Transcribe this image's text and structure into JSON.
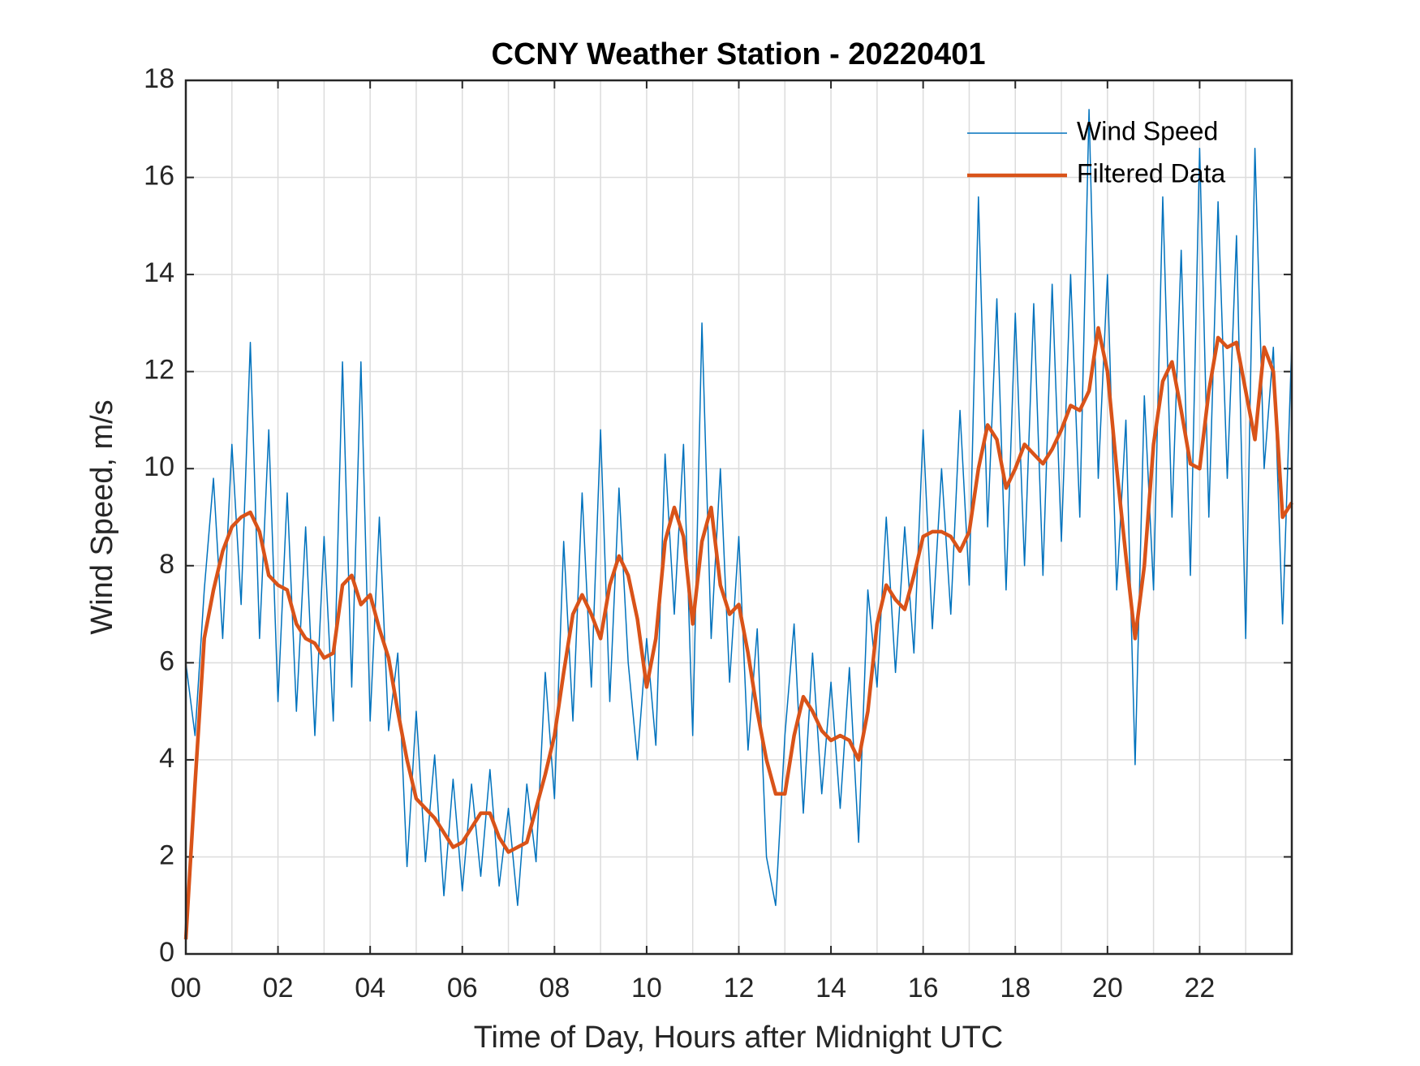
{
  "chart_data": {
    "type": "line",
    "title": "CCNY Weather Station - 20220401",
    "xlabel": "Time of Day, Hours after Midnight UTC",
    "ylabel": "Wind Speed, m/s",
    "x": [
      0,
      0.2,
      0.4,
      0.6,
      0.8,
      1,
      1.2,
      1.4,
      1.6,
      1.8,
      2,
      2.2,
      2.4,
      2.6,
      2.8,
      3,
      3.2,
      3.4,
      3.6,
      3.8,
      4,
      4.2,
      4.4,
      4.6,
      4.8,
      5,
      5.2,
      5.4,
      5.6,
      5.8,
      6,
      6.2,
      6.4,
      6.6,
      6.8,
      7,
      7.2,
      7.4,
      7.6,
      7.8,
      8,
      8.2,
      8.4,
      8.6,
      8.8,
      9,
      9.2,
      9.4,
      9.6,
      9.8,
      10,
      10.2,
      10.4,
      10.6,
      10.8,
      11,
      11.2,
      11.4,
      11.6,
      11.8,
      12,
      12.2,
      12.4,
      12.6,
      12.8,
      13,
      13.2,
      13.4,
      13.6,
      13.8,
      14,
      14.2,
      14.4,
      14.6,
      14.8,
      15,
      15.2,
      15.4,
      15.6,
      15.8,
      16,
      16.2,
      16.4,
      16.6,
      16.8,
      17,
      17.2,
      17.4,
      17.6,
      17.8,
      18,
      18.2,
      18.4,
      18.6,
      18.8,
      19,
      19.2,
      19.4,
      19.6,
      19.8,
      20,
      20.2,
      20.4,
      20.6,
      20.8,
      21,
      21.2,
      21.4,
      21.6,
      21.8,
      22,
      22.2,
      22.4,
      22.6,
      22.8,
      23,
      23.2,
      23.4,
      23.6,
      23.8,
      24
    ],
    "series": [
      {
        "name": "Wind Speed",
        "color": "#0072bd",
        "line_width": 1.5,
        "values": [
          6.0,
          4.5,
          7.5,
          9.8,
          6.5,
          10.5,
          7.2,
          12.6,
          6.5,
          10.8,
          5.2,
          9.5,
          5.0,
          8.8,
          4.5,
          8.6,
          4.8,
          12.2,
          5.5,
          12.2,
          4.8,
          9.0,
          4.6,
          6.2,
          1.8,
          5.0,
          1.9,
          4.1,
          1.2,
          3.6,
          1.3,
          3.5,
          1.6,
          3.8,
          1.4,
          3.0,
          1.0,
          3.5,
          1.9,
          5.8,
          3.2,
          8.5,
          4.8,
          9.5,
          5.5,
          10.8,
          5.2,
          9.6,
          6.0,
          4.0,
          6.5,
          4.3,
          10.3,
          7.0,
          10.5,
          4.5,
          13.0,
          6.5,
          10.0,
          5.6,
          8.6,
          4.2,
          6.7,
          2.0,
          1.0,
          4.5,
          6.8,
          2.9,
          6.2,
          3.3,
          5.6,
          3.0,
          5.9,
          2.3,
          7.5,
          5.5,
          9.0,
          5.8,
          8.8,
          6.2,
          10.8,
          6.7,
          10.0,
          7.0,
          11.2,
          7.6,
          15.6,
          8.8,
          13.5,
          7.5,
          13.2,
          8.0,
          13.4,
          7.8,
          13.8,
          8.5,
          14.0,
          9.0,
          17.4,
          9.8,
          14.0,
          7.5,
          11.0,
          3.9,
          11.5,
          7.5,
          15.6,
          9.0,
          14.5,
          7.8,
          16.6,
          9.0,
          15.5,
          9.8,
          14.8,
          6.5,
          16.6,
          10.0,
          12.5,
          6.8,
          12.6
        ]
      },
      {
        "name": "Filtered Data",
        "color": "#d95319",
        "line_width": 4.5,
        "values": [
          0.3,
          3.5,
          6.5,
          7.5,
          8.3,
          8.8,
          9.0,
          9.1,
          8.7,
          7.8,
          7.6,
          7.5,
          6.8,
          6.5,
          6.4,
          6.1,
          6.2,
          7.6,
          7.8,
          7.2,
          7.4,
          6.7,
          6.1,
          5.0,
          4.0,
          3.2,
          3.0,
          2.8,
          2.5,
          2.2,
          2.3,
          2.6,
          2.9,
          2.9,
          2.4,
          2.1,
          2.2,
          2.3,
          3.0,
          3.7,
          4.5,
          5.8,
          7.0,
          7.4,
          7.0,
          6.5,
          7.6,
          8.2,
          7.8,
          6.9,
          5.5,
          6.5,
          8.5,
          9.2,
          8.6,
          6.8,
          8.5,
          9.2,
          7.6,
          7.0,
          7.2,
          6.2,
          5.0,
          4.0,
          3.3,
          3.3,
          4.5,
          5.3,
          5.0,
          4.6,
          4.4,
          4.5,
          4.4,
          4.0,
          5.0,
          6.8,
          7.6,
          7.3,
          7.1,
          7.8,
          8.6,
          8.7,
          8.7,
          8.6,
          8.3,
          8.7,
          10.0,
          10.9,
          10.6,
          9.6,
          10.0,
          10.5,
          10.3,
          10.1,
          10.4,
          10.8,
          11.3,
          11.2,
          11.6,
          12.9,
          12.0,
          10.0,
          8.2,
          6.5,
          8.0,
          10.5,
          11.8,
          12.2,
          11.2,
          10.1,
          10.0,
          11.6,
          12.7,
          12.5,
          12.6,
          11.6,
          10.6,
          12.5,
          12.0,
          9.0,
          9.3
        ]
      }
    ],
    "xlim": [
      0,
      24
    ],
    "xticks": [
      {
        "value": 0,
        "label": "00"
      },
      {
        "value": 2,
        "label": "02"
      },
      {
        "value": 4,
        "label": "04"
      },
      {
        "value": 6,
        "label": "06"
      },
      {
        "value": 8,
        "label": "08"
      },
      {
        "value": 10,
        "label": "10"
      },
      {
        "value": 12,
        "label": "12"
      },
      {
        "value": 14,
        "label": "14"
      },
      {
        "value": 16,
        "label": "16"
      },
      {
        "value": 18,
        "label": "18"
      },
      {
        "value": 20,
        "label": "20"
      },
      {
        "value": 22,
        "label": "22"
      }
    ],
    "x_minor_grid": [
      1,
      3,
      5,
      7,
      9,
      11,
      13,
      15,
      17,
      19,
      21,
      23
    ],
    "ylim": [
      0,
      18
    ],
    "yticks": [
      0,
      2,
      4,
      6,
      8,
      10,
      12,
      14,
      16,
      18
    ],
    "grid": true,
    "legend": "upper right"
  }
}
